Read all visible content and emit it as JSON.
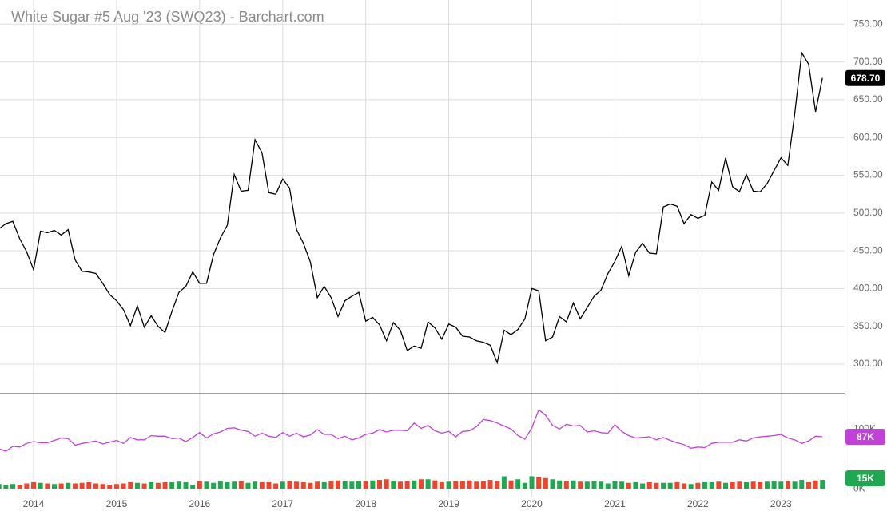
{
  "chart_data": [
    {
      "type": "line",
      "title": "White Sugar #5 Aug '23 (SWQ23) - Barchart.com",
      "categories": [
        null,
        null,
        null,
        null,
        null,
        "2014",
        null,
        null,
        null,
        null,
        null,
        null,
        null,
        null,
        null,
        null,
        null,
        "2015",
        null,
        null,
        null,
        null,
        null,
        null,
        null,
        null,
        null,
        null,
        null,
        "2016",
        null,
        null,
        null,
        null,
        null,
        null,
        null,
        null,
        null,
        null,
        null,
        "2017",
        null,
        null,
        null,
        null,
        null,
        null,
        null,
        null,
        null,
        null,
        null,
        "2018",
        null,
        null,
        null,
        null,
        null,
        null,
        null,
        null,
        null,
        null,
        null,
        "2019",
        null,
        null,
        null,
        null,
        null,
        null,
        null,
        null,
        null,
        null,
        null,
        "2020",
        null,
        null,
        null,
        null,
        null,
        null,
        null,
        null,
        null,
        null,
        null,
        "2021",
        null,
        null,
        null,
        null,
        null,
        null,
        null,
        null,
        null,
        null,
        null,
        "2022",
        null,
        null,
        null,
        null,
        null,
        null,
        null,
        null,
        null,
        null,
        null,
        "2023",
        null,
        null,
        null,
        null,
        null,
        null
      ],
      "color": "#000000",
      "values": [
        479,
        486,
        489,
        466,
        449,
        425,
        476,
        474,
        477,
        471,
        478,
        438,
        423,
        422,
        420,
        407,
        392,
        384,
        372,
        351,
        377,
        349,
        364,
        350,
        342,
        370,
        395,
        403,
        422,
        407,
        407,
        445,
        467,
        484,
        551,
        529,
        530,
        597,
        580,
        527,
        525,
        545,
        533,
        478,
        460,
        435,
        388,
        403,
        388,
        363,
        384,
        390,
        395,
        357,
        362,
        352,
        331,
        355,
        345,
        318,
        324,
        321,
        356,
        348,
        333,
        353,
        349,
        337,
        336,
        331,
        329,
        325,
        302,
        345,
        339,
        346,
        360,
        400,
        397,
        331,
        336,
        363,
        356,
        381,
        360,
        375,
        390,
        398,
        420,
        436,
        456,
        417,
        448,
        460,
        447,
        446,
        508,
        512,
        509,
        486,
        498,
        493,
        497,
        541,
        530,
        573,
        535,
        528,
        551,
        529,
        528,
        539,
        556,
        573,
        563,
        632,
        712,
        697,
        634,
        678.7
      ],
      "value_labels": {
        "119": "678.70"
      },
      "ylim": [
        262,
        782
      ],
      "yticks": [
        {
          "value": 300,
          "label": "300.00"
        },
        {
          "value": 350,
          "label": "350.00"
        },
        {
          "value": 400,
          "label": "400.00"
        },
        {
          "value": 450,
          "label": "450.00"
        },
        {
          "value": 500,
          "label": "500.00"
        },
        {
          "value": 550,
          "label": "550.00"
        },
        {
          "value": 600,
          "label": "600.00"
        },
        {
          "value": 650,
          "label": "650.00"
        },
        {
          "value": 700,
          "label": "700.00"
        },
        {
          "value": 750,
          "label": "750.00"
        }
      ],
      "grid": true
    },
    {
      "type": "combo",
      "ylim": [
        -13000,
        159000
      ],
      "yticks": [
        {
          "value": 0,
          "label": "0K"
        },
        {
          "value": 100000,
          "label": "100K"
        }
      ],
      "series": [
        {
          "type": "line",
          "color": "#c042d6",
          "values": [
            67000,
            63000,
            71000,
            70000,
            76000,
            79000,
            77000,
            77000,
            81000,
            85000,
            84000,
            73000,
            76000,
            78000,
            80000,
            75000,
            78000,
            81000,
            76000,
            86000,
            82000,
            82000,
            89000,
            88000,
            88000,
            84000,
            85000,
            79000,
            86000,
            94000,
            85000,
            92000,
            95000,
            101000,
            102000,
            98000,
            96000,
            88000,
            93000,
            88000,
            86000,
            94000,
            88000,
            93000,
            87000,
            90000,
            99000,
            91000,
            91000,
            84000,
            88000,
            82000,
            85000,
            91000,
            93000,
            99000,
            95000,
            98000,
            98000,
            97000,
            110000,
            101000,
            106000,
            97000,
            93000,
            96000,
            87000,
            96000,
            97000,
            104000,
            116000,
            114000,
            110000,
            105000,
            100000,
            89000,
            83000,
            102000,
            132000,
            123000,
            106000,
            100000,
            108000,
            105000,
            106000,
            95000,
            97000,
            94000,
            93000,
            107000,
            96000,
            89000,
            85000,
            86000,
            87000,
            82000,
            86000,
            81000,
            77000,
            74000,
            68000,
            70000,
            69000,
            76000,
            78000,
            78000,
            78000,
            82000,
            80000,
            85000,
            87000,
            88000,
            89000,
            91000,
            85000,
            82000,
            76000,
            80000,
            88000,
            87000
          ],
          "value_labels": {
            "119": "87K"
          }
        },
        {
          "type": "bar",
          "up_color": "#1fa84f",
          "down_color": "#f0452b",
          "values": [
            8000,
            7000,
            8000,
            6000,
            9000,
            11000,
            10000,
            9000,
            8000,
            9000,
            10000,
            9000,
            10000,
            11000,
            9000,
            8000,
            7000,
            8000,
            9000,
            11000,
            10000,
            9000,
            11000,
            10000,
            11000,
            11000,
            12000,
            11000,
            7000,
            13000,
            12000,
            10000,
            13000,
            11000,
            12000,
            13000,
            10000,
            12000,
            11000,
            11000,
            9000,
            12000,
            13000,
            12000,
            11000,
            10000,
            12000,
            11000,
            13000,
            14000,
            13000,
            12000,
            13000,
            13000,
            14000,
            15000,
            16000,
            13000,
            12000,
            13000,
            14000,
            16000,
            16000,
            14000,
            11000,
            12000,
            13000,
            13000,
            14000,
            12000,
            13000,
            15000,
            13000,
            21000,
            14000,
            16000,
            10000,
            21000,
            20000,
            18000,
            16000,
            14000,
            13000,
            14000,
            12000,
            12000,
            13000,
            12000,
            9000,
            13000,
            12000,
            10000,
            11000,
            9000,
            11000,
            10000,
            10000,
            10000,
            11000,
            9000,
            8000,
            10000,
            11000,
            11000,
            12000,
            10000,
            11000,
            12000,
            11000,
            12000,
            11000,
            12000,
            13000,
            12000,
            13000,
            12000,
            15000,
            11000,
            14000,
            15000
          ],
          "value_labels": {
            "119": "15K"
          }
        }
      ]
    }
  ]
}
